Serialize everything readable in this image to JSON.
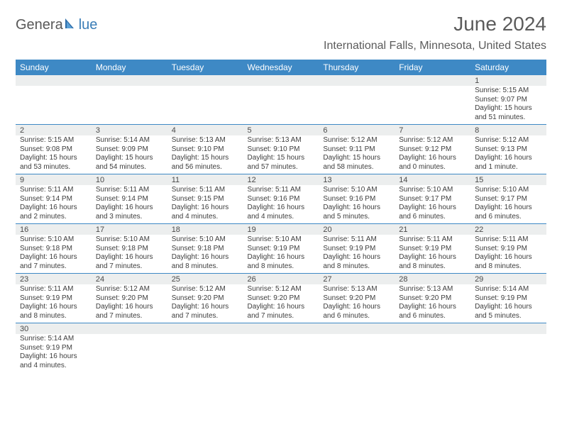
{
  "branding": {
    "word1": "Genera",
    "word2": "lue",
    "text1_color": "#585858",
    "text2_color": "#3a7db7",
    "sail_color": "#2f6da8"
  },
  "header": {
    "month_title": "June 2024",
    "location": "International Falls, Minnesota, United States",
    "title_color": "#5b5b5b"
  },
  "styling": {
    "header_bg": "#3e89c5",
    "header_text": "#ffffff",
    "daynum_bg": "#eceeee",
    "row_divider": "#3e89c5",
    "cell_text": "#3d3d3d",
    "header_fontsize": 12,
    "daynum_fontsize": 11,
    "detail_fontsize": 10,
    "month_fontsize": 28,
    "location_fontsize": 16
  },
  "days_of_week": [
    "Sunday",
    "Monday",
    "Tuesday",
    "Wednesday",
    "Thursday",
    "Friday",
    "Saturday"
  ],
  "weeks": [
    [
      null,
      null,
      null,
      null,
      null,
      null,
      {
        "n": "1",
        "sr": "Sunrise: 5:15 AM",
        "ss": "Sunset: 9:07 PM",
        "dl1": "Daylight: 15 hours",
        "dl2": "and 51 minutes."
      }
    ],
    [
      {
        "n": "2",
        "sr": "Sunrise: 5:15 AM",
        "ss": "Sunset: 9:08 PM",
        "dl1": "Daylight: 15 hours",
        "dl2": "and 53 minutes."
      },
      {
        "n": "3",
        "sr": "Sunrise: 5:14 AM",
        "ss": "Sunset: 9:09 PM",
        "dl1": "Daylight: 15 hours",
        "dl2": "and 54 minutes."
      },
      {
        "n": "4",
        "sr": "Sunrise: 5:13 AM",
        "ss": "Sunset: 9:10 PM",
        "dl1": "Daylight: 15 hours",
        "dl2": "and 56 minutes."
      },
      {
        "n": "5",
        "sr": "Sunrise: 5:13 AM",
        "ss": "Sunset: 9:10 PM",
        "dl1": "Daylight: 15 hours",
        "dl2": "and 57 minutes."
      },
      {
        "n": "6",
        "sr": "Sunrise: 5:12 AM",
        "ss": "Sunset: 9:11 PM",
        "dl1": "Daylight: 15 hours",
        "dl2": "and 58 minutes."
      },
      {
        "n": "7",
        "sr": "Sunrise: 5:12 AM",
        "ss": "Sunset: 9:12 PM",
        "dl1": "Daylight: 16 hours",
        "dl2": "and 0 minutes."
      },
      {
        "n": "8",
        "sr": "Sunrise: 5:12 AM",
        "ss": "Sunset: 9:13 PM",
        "dl1": "Daylight: 16 hours",
        "dl2": "and 1 minute."
      }
    ],
    [
      {
        "n": "9",
        "sr": "Sunrise: 5:11 AM",
        "ss": "Sunset: 9:14 PM",
        "dl1": "Daylight: 16 hours",
        "dl2": "and 2 minutes."
      },
      {
        "n": "10",
        "sr": "Sunrise: 5:11 AM",
        "ss": "Sunset: 9:14 PM",
        "dl1": "Daylight: 16 hours",
        "dl2": "and 3 minutes."
      },
      {
        "n": "11",
        "sr": "Sunrise: 5:11 AM",
        "ss": "Sunset: 9:15 PM",
        "dl1": "Daylight: 16 hours",
        "dl2": "and 4 minutes."
      },
      {
        "n": "12",
        "sr": "Sunrise: 5:11 AM",
        "ss": "Sunset: 9:16 PM",
        "dl1": "Daylight: 16 hours",
        "dl2": "and 4 minutes."
      },
      {
        "n": "13",
        "sr": "Sunrise: 5:10 AM",
        "ss": "Sunset: 9:16 PM",
        "dl1": "Daylight: 16 hours",
        "dl2": "and 5 minutes."
      },
      {
        "n": "14",
        "sr": "Sunrise: 5:10 AM",
        "ss": "Sunset: 9:17 PM",
        "dl1": "Daylight: 16 hours",
        "dl2": "and 6 minutes."
      },
      {
        "n": "15",
        "sr": "Sunrise: 5:10 AM",
        "ss": "Sunset: 9:17 PM",
        "dl1": "Daylight: 16 hours",
        "dl2": "and 6 minutes."
      }
    ],
    [
      {
        "n": "16",
        "sr": "Sunrise: 5:10 AM",
        "ss": "Sunset: 9:18 PM",
        "dl1": "Daylight: 16 hours",
        "dl2": "and 7 minutes."
      },
      {
        "n": "17",
        "sr": "Sunrise: 5:10 AM",
        "ss": "Sunset: 9:18 PM",
        "dl1": "Daylight: 16 hours",
        "dl2": "and 7 minutes."
      },
      {
        "n": "18",
        "sr": "Sunrise: 5:10 AM",
        "ss": "Sunset: 9:18 PM",
        "dl1": "Daylight: 16 hours",
        "dl2": "and 8 minutes."
      },
      {
        "n": "19",
        "sr": "Sunrise: 5:10 AM",
        "ss": "Sunset: 9:19 PM",
        "dl1": "Daylight: 16 hours",
        "dl2": "and 8 minutes."
      },
      {
        "n": "20",
        "sr": "Sunrise: 5:11 AM",
        "ss": "Sunset: 9:19 PM",
        "dl1": "Daylight: 16 hours",
        "dl2": "and 8 minutes."
      },
      {
        "n": "21",
        "sr": "Sunrise: 5:11 AM",
        "ss": "Sunset: 9:19 PM",
        "dl1": "Daylight: 16 hours",
        "dl2": "and 8 minutes."
      },
      {
        "n": "22",
        "sr": "Sunrise: 5:11 AM",
        "ss": "Sunset: 9:19 PM",
        "dl1": "Daylight: 16 hours",
        "dl2": "and 8 minutes."
      }
    ],
    [
      {
        "n": "23",
        "sr": "Sunrise: 5:11 AM",
        "ss": "Sunset: 9:19 PM",
        "dl1": "Daylight: 16 hours",
        "dl2": "and 8 minutes."
      },
      {
        "n": "24",
        "sr": "Sunrise: 5:12 AM",
        "ss": "Sunset: 9:20 PM",
        "dl1": "Daylight: 16 hours",
        "dl2": "and 7 minutes."
      },
      {
        "n": "25",
        "sr": "Sunrise: 5:12 AM",
        "ss": "Sunset: 9:20 PM",
        "dl1": "Daylight: 16 hours",
        "dl2": "and 7 minutes."
      },
      {
        "n": "26",
        "sr": "Sunrise: 5:12 AM",
        "ss": "Sunset: 9:20 PM",
        "dl1": "Daylight: 16 hours",
        "dl2": "and 7 minutes."
      },
      {
        "n": "27",
        "sr": "Sunrise: 5:13 AM",
        "ss": "Sunset: 9:20 PM",
        "dl1": "Daylight: 16 hours",
        "dl2": "and 6 minutes."
      },
      {
        "n": "28",
        "sr": "Sunrise: 5:13 AM",
        "ss": "Sunset: 9:20 PM",
        "dl1": "Daylight: 16 hours",
        "dl2": "and 6 minutes."
      },
      {
        "n": "29",
        "sr": "Sunrise: 5:14 AM",
        "ss": "Sunset: 9:19 PM",
        "dl1": "Daylight: 16 hours",
        "dl2": "and 5 minutes."
      }
    ],
    [
      {
        "n": "30",
        "sr": "Sunrise: 5:14 AM",
        "ss": "Sunset: 9:19 PM",
        "dl1": "Daylight: 16 hours",
        "dl2": "and 4 minutes."
      },
      null,
      null,
      null,
      null,
      null,
      null
    ]
  ]
}
